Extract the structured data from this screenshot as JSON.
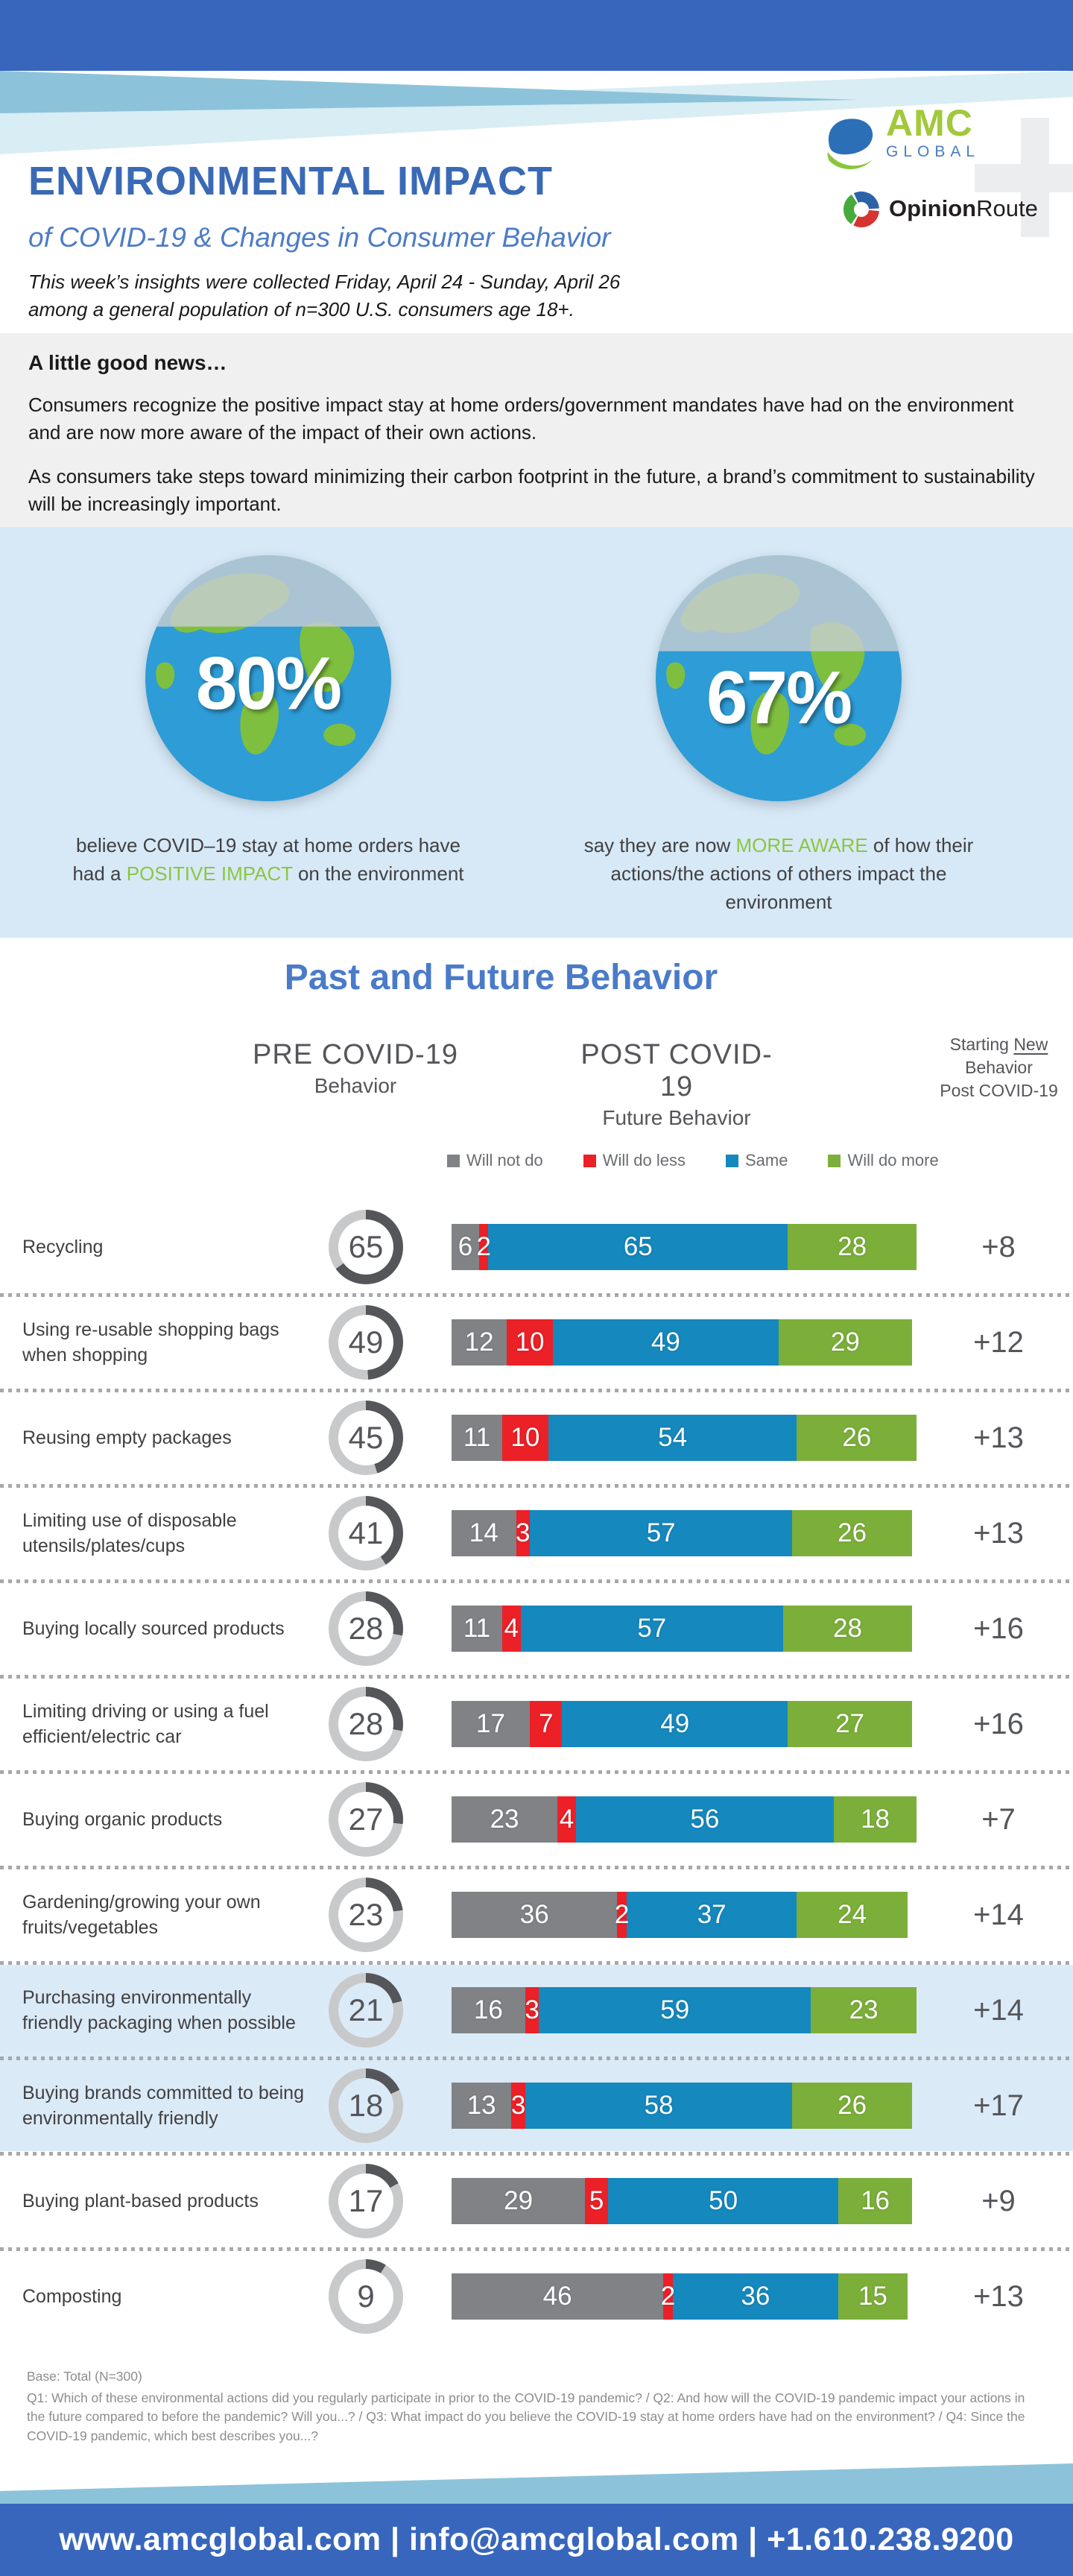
{
  "header": {
    "title": "ENVIRONMENTAL IMPACT",
    "subtitle": "of COVID-19 & Changes in Consumer Behavior",
    "collection_note": "This week’s insights were collected Friday, April 24 - Sunday, April 26\namong a general population of n=300 U.S. consumers age 18+.",
    "amc_logo": {
      "text_main": "AMC",
      "text_sub": "GLOBAL",
      "plus": "+"
    },
    "opinionroute_logo": {
      "text_bold": "Opinion",
      "text_light": "Route"
    }
  },
  "good_news": {
    "heading": "A little good news…",
    "para1": "Consumers recognize the positive impact stay at home orders/government mandates have had on the environment and are now more aware of the impact of their own actions.",
    "para2": "As consumers take steps toward minimizing their carbon footprint in the future, a brand’s commitment to sustainability will be increasingly important."
  },
  "stats": [
    {
      "value": "80%",
      "text_before": "believe COVID–19 stay at home orders have had a ",
      "highlight": "POSITIVE IMPACT",
      "text_after": " on the environment"
    },
    {
      "value": "67%",
      "text_before": "say they are now ",
      "highlight": "MORE AWARE",
      "text_after": " of how their actions/the actions of others impact the environment"
    }
  ],
  "chart_section": {
    "title": "Past and Future Behavior",
    "pre_head": {
      "line1": "PRE COVID-19",
      "line2": "Behavior"
    },
    "post_head": {
      "line1": "POST COVID-19",
      "line2": "Future Behavior"
    },
    "net_head": {
      "word1": "Starting ",
      "word_new": "New",
      "line2": "Behavior",
      "line3": "Post COVID-19"
    }
  },
  "chart_data": {
    "type": "bar",
    "stacked": true,
    "unit": "percent of consumers",
    "xlim": [
      0,
      100
    ],
    "legend_position": "top",
    "categories": [
      "Recycling",
      "Using re-usable shopping bags when shopping",
      "Reusing empty packages",
      "Limiting use of disposable utensils/plates/cups",
      "Buying locally sourced products",
      "Limiting driving or using a fuel efficient/electric car",
      "Buying organic products",
      "Gardening/growing your own fruits/vegetables",
      "Purchasing environmentally friendly packaging when possible",
      "Buying brands committed to being environmentally friendly",
      "Buying plant-based products",
      "Composting"
    ],
    "series": [
      {
        "name": "Will not do",
        "color": "#808285",
        "values": [
          6,
          12,
          11,
          14,
          11,
          17,
          23,
          36,
          16,
          13,
          29,
          46
        ]
      },
      {
        "name": "Will do less",
        "color": "#EC2027",
        "values": [
          2,
          10,
          10,
          3,
          4,
          7,
          4,
          2,
          3,
          3,
          5,
          2
        ]
      },
      {
        "name": "Same",
        "color": "#1588BE",
        "values": [
          65,
          49,
          54,
          57,
          57,
          49,
          56,
          37,
          59,
          58,
          50,
          36
        ]
      },
      {
        "name": "Will do more",
        "color": "#7CAF3A",
        "values": [
          28,
          29,
          26,
          26,
          28,
          27,
          18,
          24,
          23,
          26,
          16,
          15
        ]
      }
    ],
    "pre_covid_values": [
      65,
      49,
      45,
      41,
      28,
      28,
      27,
      23,
      21,
      18,
      17,
      9
    ],
    "net_new_behavior": [
      "+8",
      "+12",
      "+13",
      "+13",
      "+16",
      "+16",
      "+7",
      "+14",
      "+14",
      "+17",
      "+9",
      "+13"
    ],
    "highlighted_rows": [
      8,
      9
    ],
    "donut_fill": "#55565A",
    "donut_rest": "#C8C9CA"
  },
  "footnote": {
    "base": "Base: Total (N=300)",
    "questions": "Q1: Which of these environmental actions did you regularly participate in prior to the COVID-19 pandemic? / Q2: And how will the COVID-19 pandemic impact your actions in the future compared to before the pandemic? Will you...? / Q3: What impact do you believe the COVID-19 stay at home orders have had on the environment? / Q4: Since the COVID-19 pandemic, which best describes you...?"
  },
  "footer": {
    "contact": "www.amcglobal.com | info@amcglobal.com | +1.610.238.9200"
  }
}
